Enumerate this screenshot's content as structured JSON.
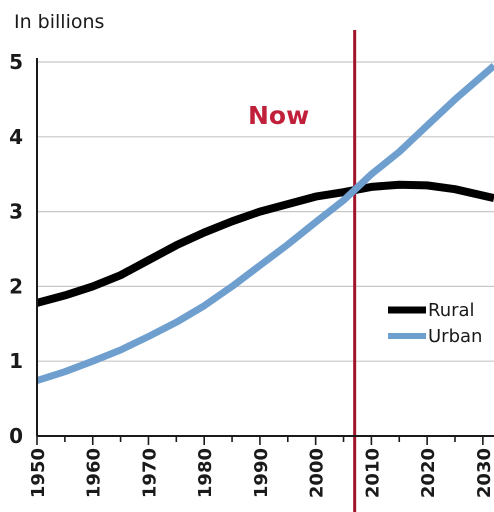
{
  "chart_data": {
    "type": "line",
    "unit_label": "In billions",
    "annotation": "Now",
    "now_year": 2007,
    "x": [
      1950,
      1960,
      1970,
      1980,
      1990,
      2000,
      2007,
      2010,
      2020,
      2030
    ],
    "xticks": [
      "1950",
      "1960",
      "1970",
      "1980",
      "1990",
      "2000",
      "2010",
      "2020",
      "2030"
    ],
    "yticks": [
      "0",
      "1",
      "2",
      "3",
      "4",
      "5"
    ],
    "xlim": [
      1950,
      2032
    ],
    "ylim": [
      0,
      5
    ],
    "grid": true,
    "legend_position": "right",
    "series": [
      {
        "name": "Rural",
        "color": "#000000",
        "points": [
          [
            1950,
            1.78
          ],
          [
            1955,
            1.88
          ],
          [
            1960,
            2.0
          ],
          [
            1965,
            2.15
          ],
          [
            1970,
            2.35
          ],
          [
            1975,
            2.55
          ],
          [
            1980,
            2.72
          ],
          [
            1985,
            2.87
          ],
          [
            1990,
            3.0
          ],
          [
            1995,
            3.1
          ],
          [
            2000,
            3.2
          ],
          [
            2005,
            3.26
          ],
          [
            2010,
            3.33
          ],
          [
            2015,
            3.36
          ],
          [
            2020,
            3.35
          ],
          [
            2025,
            3.3
          ],
          [
            2032,
            3.18
          ]
        ]
      },
      {
        "name": "Urban",
        "color": "#6f9fcf",
        "points": [
          [
            1950,
            0.74
          ],
          [
            1955,
            0.86
          ],
          [
            1960,
            1.0
          ],
          [
            1965,
            1.15
          ],
          [
            1970,
            1.33
          ],
          [
            1975,
            1.52
          ],
          [
            1980,
            1.74
          ],
          [
            1985,
            2.0
          ],
          [
            1990,
            2.28
          ],
          [
            1995,
            2.56
          ],
          [
            2000,
            2.86
          ],
          [
            2005,
            3.15
          ],
          [
            2010,
            3.5
          ],
          [
            2015,
            3.8
          ],
          [
            2020,
            4.15
          ],
          [
            2025,
            4.5
          ],
          [
            2032,
            4.95
          ]
        ]
      }
    ],
    "colors": {
      "now_line": "#a0142a",
      "annotation": "#c0203a",
      "grid": "#c8c8c8",
      "axis": "#1a1a1a"
    }
  }
}
